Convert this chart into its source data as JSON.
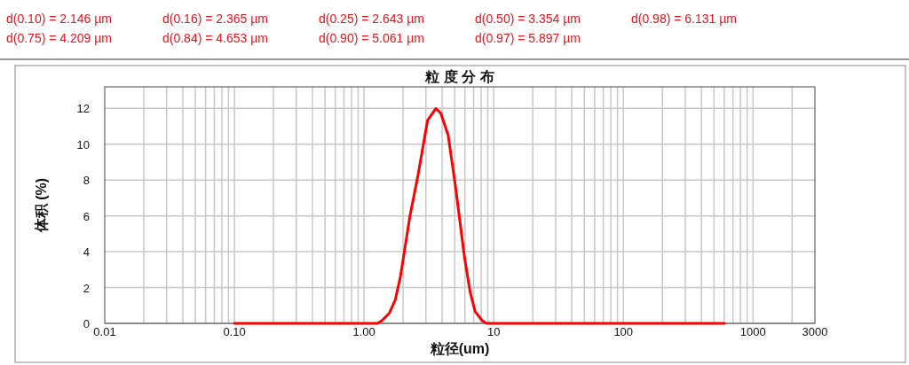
{
  "chart_data": {
    "type": "line",
    "title": "粒 度 分 布",
    "xlabel": "粒径(um)",
    "ylabel": "体积 (%)",
    "log": "x",
    "grid": true,
    "xlim": [
      0.01,
      3000
    ],
    "xticks": [
      0.01,
      {
        "value": 0.1,
        "label": "0.10"
      },
      {
        "value": 1,
        "label": "1.00"
      },
      10,
      100,
      1000,
      3000
    ],
    "ylim": [
      0,
      13.2
    ],
    "yticks": [
      0,
      2,
      4,
      6,
      8,
      10,
      12
    ],
    "annotations": [
      "d(0.10) = 2.146  µm",
      "d(0.16) = 2.365  µm",
      "d(0.25) = 2.643  µm",
      "d(0.50) = 3.354  µm",
      "d(0.98) = 6.131  µm",
      "d(0.75) = 4.209  µm",
      "d(0.84) = 4.653  µm",
      "d(0.90) = 5.061  µm",
      "d(0.97) = 5.897  µm"
    ],
    "series": [
      {
        "color": "#ff0000",
        "x": [
          0.1,
          1.27,
          1.375,
          1.567,
          1.74,
          1.91,
          2.26,
          2.61,
          3.09,
          3.58,
          3.9,
          4.45,
          5.07,
          5.95,
          6.59,
          7.19,
          8.13,
          8.8,
          600
        ],
        "values": [
          0,
          0,
          0.16,
          0.57,
          1.31,
          2.63,
          6.0,
          8.29,
          11.33,
          11.99,
          11.74,
          10.51,
          7.64,
          3.69,
          1.72,
          0.66,
          0.16,
          0,
          0
        ]
      }
    ]
  }
}
